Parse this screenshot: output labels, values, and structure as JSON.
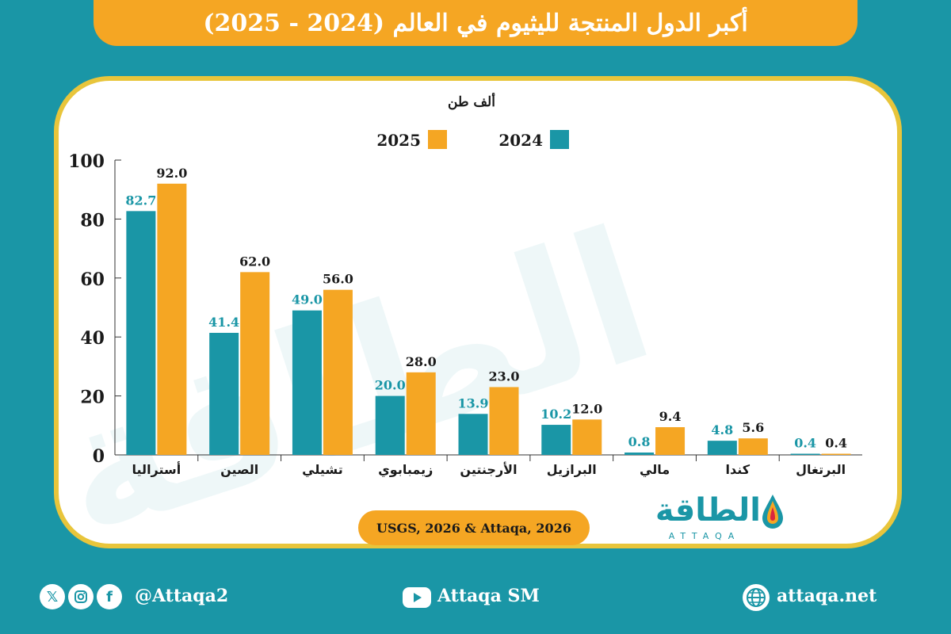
{
  "title": "أكبر الدول المنتجة لليثيوم في العالم (2024 - 2025)",
  "source": "USGS, 2026 & Attaqa, 2026",
  "logo": {
    "arabic": "الطاقة",
    "latin": "ATTAQA"
  },
  "footer": {
    "handle": "@Attaqa2",
    "youtube": "Attaqa SM",
    "website": "attaqa.net",
    "icons": [
      "x-icon",
      "instagram-icon",
      "facebook-icon",
      "youtube-icon",
      "globe-icon"
    ]
  },
  "colors": {
    "series_2024": "#1a96a6",
    "series_2025": "#f5a623",
    "card_border": "#e8c53b"
  },
  "chart_data": {
    "type": "bar",
    "title": "",
    "ylabel": "ألف طن",
    "xlabel": "",
    "ylim": [
      0,
      100
    ],
    "yticks": [
      0,
      20,
      40,
      60,
      80,
      100
    ],
    "legend": "top",
    "grid": false,
    "categories": [
      "أستراليا",
      "الصين",
      "تشيلي",
      "زيمبابوي",
      "الأرجنتين",
      "البرازيل",
      "مالي",
      "كندا",
      "البرتغال"
    ],
    "series": [
      {
        "name": "2024",
        "color": "#1a96a6",
        "values": [
          82.7,
          41.4,
          49.0,
          20.0,
          13.9,
          10.2,
          0.8,
          4.8,
          0.4
        ]
      },
      {
        "name": "2025",
        "color": "#f5a623",
        "values": [
          92.0,
          62.0,
          56.0,
          28.0,
          23.0,
          12.0,
          9.4,
          5.6,
          0.4
        ]
      }
    ]
  }
}
